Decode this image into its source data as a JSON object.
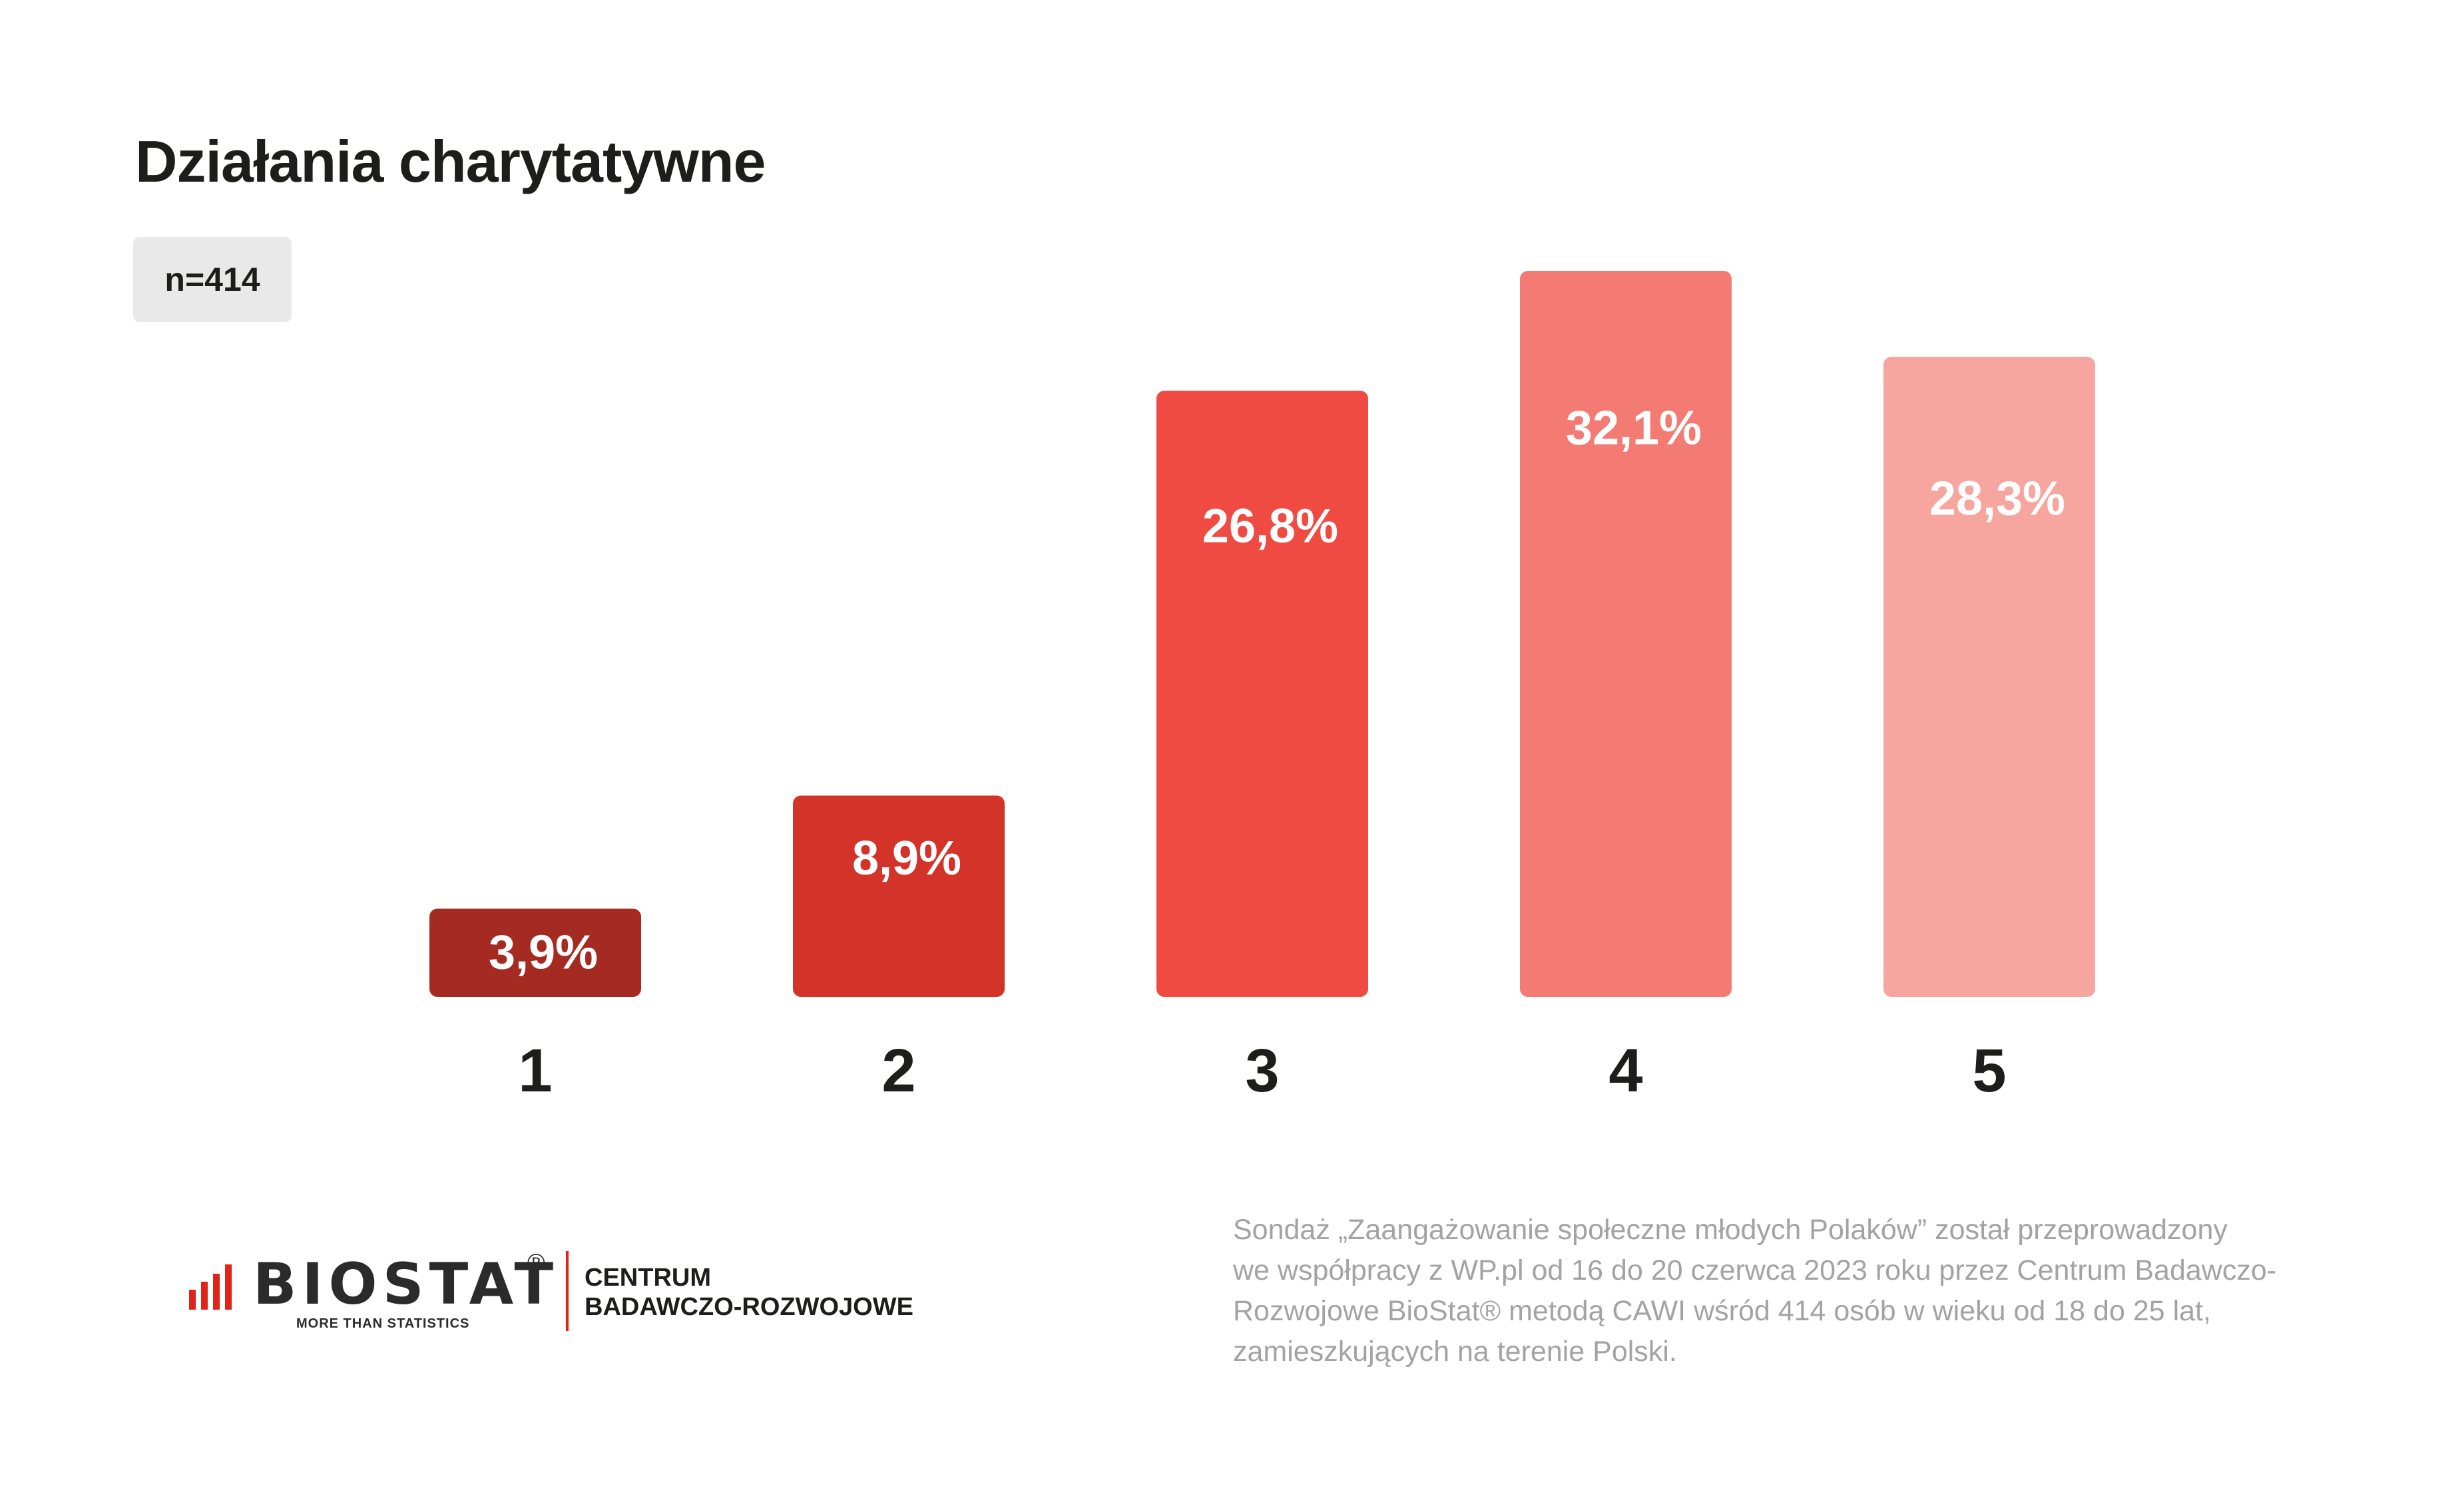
{
  "header": {
    "title": "Działania charytatywne",
    "n_label": "n=414"
  },
  "chart_data": {
    "type": "bar",
    "title": "Działania charytatywne",
    "xlabel": "",
    "ylabel": "",
    "categories": [
      "1",
      "2",
      "3",
      "4",
      "5"
    ],
    "values": [
      3.9,
      8.9,
      26.8,
      32.1,
      28.3
    ],
    "value_labels": [
      "3,9%",
      "8,9%",
      "26,8%",
      "32,1%",
      "28,3%"
    ],
    "colors": [
      "#a52a22",
      "#d43329",
      "#ef4b42",
      "#f37b73",
      "#f7a59f"
    ],
    "ylim": [
      0,
      32.1
    ],
    "grid": false,
    "legend": "none"
  },
  "footer": {
    "logo_name": "BIOSTAT",
    "logo_reg": "®",
    "logo_tagline": "MORE THAN STATISTICS",
    "center_line1": "CENTRUM",
    "center_line2": "BADAWCZO-ROZWOJOWE",
    "note_lines": [
      "Sondaż  „Zaangażowanie społeczne młodych Polaków” został przeprowadzony",
      "we współpracy z WP.pl od 16 do 20 czerwca 2023 roku przez Centrum Badawczo-",
      "Rozwojowe BioStat® metodą CAWI wśród 414 osób w wieku od 18 do 25 lat,",
      "zamieszkujących na terenie Polski."
    ]
  }
}
